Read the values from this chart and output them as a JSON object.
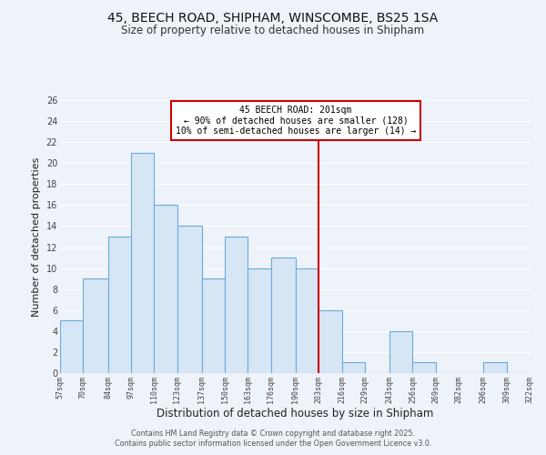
{
  "title": "45, BEECH ROAD, SHIPHAM, WINSCOMBE, BS25 1SA",
  "subtitle": "Size of property relative to detached houses in Shipham",
  "xlabel": "Distribution of detached houses by size in Shipham",
  "ylabel": "Number of detached properties",
  "bin_edges": [
    57,
    70,
    84,
    97,
    110,
    123,
    137,
    150,
    163,
    176,
    190,
    203,
    216,
    229,
    243,
    256,
    269,
    282,
    296,
    309,
    322
  ],
  "counts": [
    5,
    9,
    13,
    21,
    16,
    14,
    9,
    13,
    10,
    11,
    10,
    6,
    1,
    0,
    4,
    1,
    0,
    0,
    1,
    0
  ],
  "bar_facecolor": "#d6e6f5",
  "bar_edgecolor": "#6aabda",
  "vline_x": 203,
  "vline_color": "#cc0000",
  "annotation_line1": "45 BEECH ROAD: 201sqm",
  "annotation_line2": "← 90% of detached houses are smaller (128)",
  "annotation_line3": "10% of semi-detached houses are larger (14) →",
  "ylim": [
    0,
    26
  ],
  "yticks": [
    0,
    2,
    4,
    6,
    8,
    10,
    12,
    14,
    16,
    18,
    20,
    22,
    24,
    26
  ],
  "background_color": "#eef2f9",
  "grid_color": "#ffffff",
  "footer_line1": "Contains HM Land Registry data © Crown copyright and database right 2025.",
  "footer_line2": "Contains public sector information licensed under the Open Government Licence v3.0.",
  "tick_labels": [
    "57sqm",
    "70sqm",
    "84sqm",
    "97sqm",
    "110sqm",
    "123sqm",
    "137sqm",
    "150sqm",
    "163sqm",
    "176sqm",
    "190sqm",
    "203sqm",
    "216sqm",
    "229sqm",
    "243sqm",
    "256sqm",
    "269sqm",
    "282sqm",
    "296sqm",
    "309sqm",
    "322sqm"
  ]
}
